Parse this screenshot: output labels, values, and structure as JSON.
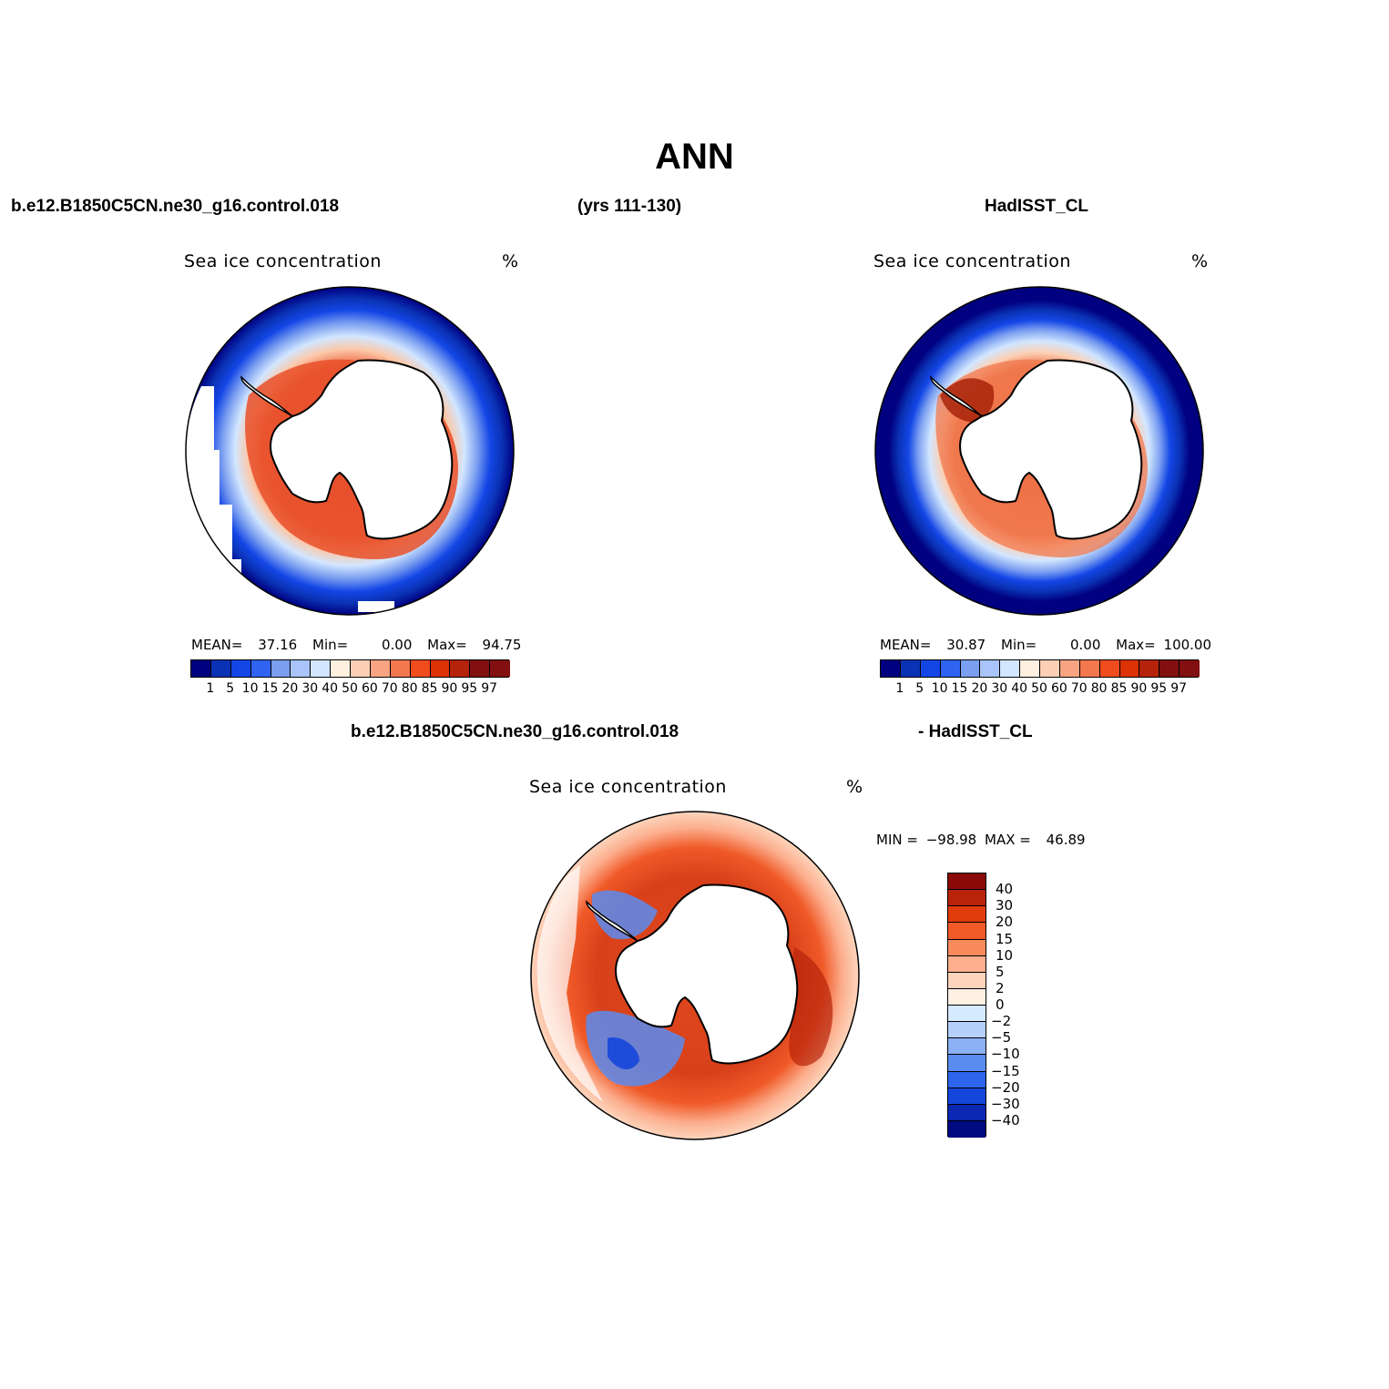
{
  "title": "ANN",
  "header": {
    "case_name": "b.e12.B1850C5CN.ne30_g16.control.018",
    "years": "(yrs 111-130)",
    "obs_name": "HadISST_CL",
    "diff_case": "b.e12.B1850C5CN.ne30_g16.control.018",
    "diff_obs": "- HadISST_CL"
  },
  "panels": {
    "model": {
      "label": "Sea ice concentration",
      "units": "%",
      "mean_label": "MEAN=",
      "mean": "37.16",
      "min_label": "Min=",
      "min": "0.00",
      "max_label": "Max=",
      "max": "94.75"
    },
    "obs": {
      "label": "Sea ice concentration",
      "units": "%",
      "mean_label": "MEAN=",
      "mean": "30.87",
      "min_label": "Min=",
      "min": "0.00",
      "max_label": "Max=",
      "max": "100.00"
    },
    "diff": {
      "label": "Sea ice concentration",
      "units": "%",
      "min_label": "MIN =",
      "min": "−98.98",
      "max_label": "MAX =",
      "max": "46.89"
    }
  },
  "colorbar_abs": {
    "ticks": [
      "1",
      "5",
      "10",
      "15",
      "20",
      "30",
      "40",
      "50",
      "60",
      "70",
      "80",
      "85",
      "90",
      "95",
      "97"
    ],
    "colors": [
      "#000080",
      "#0a32b4",
      "#1446e6",
      "#3064f0",
      "#7a9ef0",
      "#a8c4f8",
      "#d2e6ff",
      "#fff0e0",
      "#fcd0b4",
      "#f8a482",
      "#f4784e",
      "#f04c1e",
      "#dc3205",
      "#b4230a",
      "#821010"
    ]
  },
  "colorbar_diff": {
    "ticks": [
      "40",
      "30",
      "20",
      "15",
      "10",
      "5",
      "2",
      "0",
      "−2",
      "−5",
      "−10",
      "−15",
      "−20",
      "−30",
      "−40"
    ],
    "colors": [
      "#8a0a0a",
      "#b8230a",
      "#e03c0a",
      "#f05a28",
      "#f88a5c",
      "#fcae8e",
      "#fdd5bc",
      "#fff0e4",
      "#d6eaff",
      "#b4d0fb",
      "#8cb0f5",
      "#5a8cf0",
      "#2c64ec",
      "#1446dc",
      "#0a28b4",
      "#000a80"
    ]
  }
}
